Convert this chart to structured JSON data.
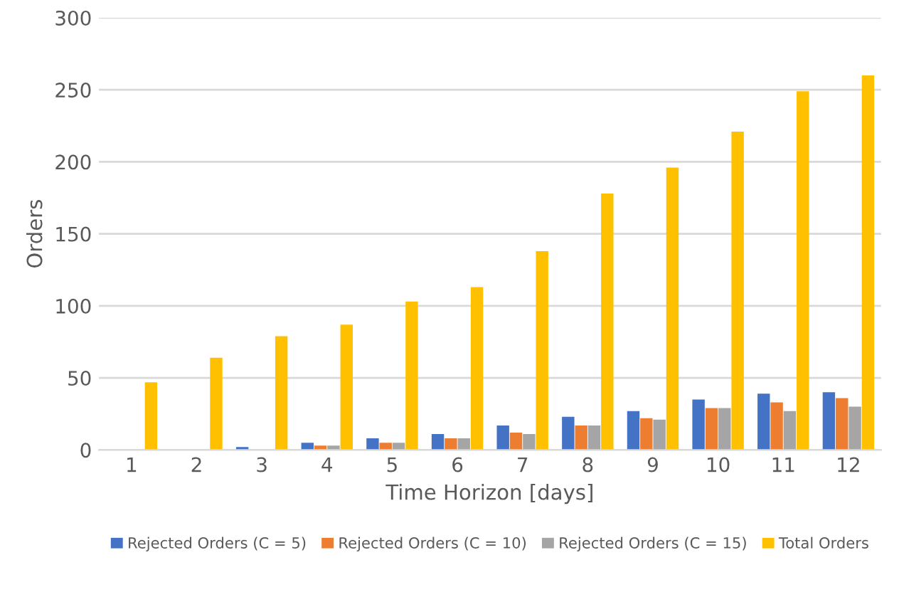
{
  "chart_data": {
    "type": "bar",
    "xlabel": "Time Horizon [days]",
    "ylabel": "Orders",
    "categories": [
      "1",
      "2",
      "3",
      "4",
      "5",
      "6",
      "7",
      "8",
      "9",
      "10",
      "11",
      "12"
    ],
    "series": [
      {
        "name": "Rejected Orders (C = 5)",
        "color": "#4472c4",
        "values": [
          0,
          0,
          2,
          5,
          8,
          11,
          17,
          23,
          27,
          35,
          39,
          40
        ]
      },
      {
        "name": "Rejected Orders (C = 10)",
        "color": "#ed7d31",
        "values": [
          0,
          0,
          0,
          3,
          5,
          8,
          12,
          17,
          22,
          29,
          33,
          36
        ]
      },
      {
        "name": "Rejected Orders (C = 15)",
        "color": "#a5a5a5",
        "values": [
          0,
          0,
          0,
          3,
          5,
          8,
          11,
          17,
          21,
          29,
          27,
          30
        ]
      },
      {
        "name": "Total Orders",
        "color": "#ffc000",
        "values": [
          47,
          64,
          79,
          87,
          103,
          113,
          138,
          178,
          196,
          221,
          249,
          260
        ]
      }
    ],
    "ylim": [
      0,
      300
    ],
    "yticks": [
      0,
      50,
      100,
      150,
      200,
      250,
      300
    ],
    "grid": "y",
    "legend": "bottom"
  }
}
